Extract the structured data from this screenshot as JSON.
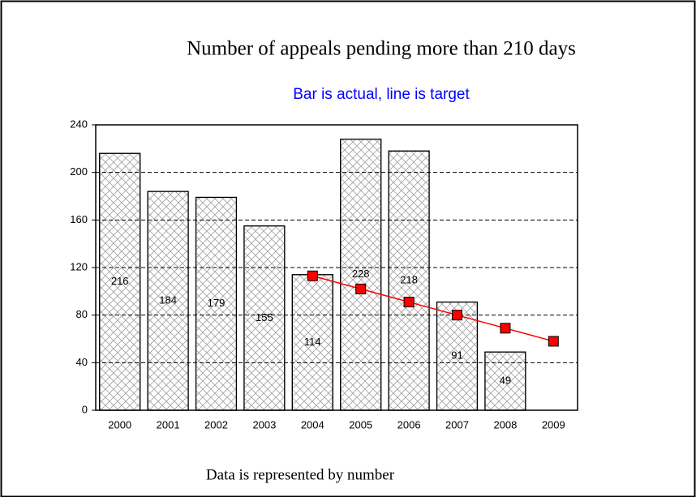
{
  "chart_data": {
    "type": "bar",
    "title": "Number of appeals pending more than 210 days",
    "subtitle": "Bar is actual, line is target",
    "footer": "Data is represented by number",
    "categories": [
      "2000",
      "2001",
      "2002",
      "2003",
      "2004",
      "2005",
      "2006",
      "2007",
      "2008",
      "2009"
    ],
    "series": [
      {
        "type": "bar",
        "color": "#ffffff",
        "pattern": "crosshatch",
        "data_labels": true,
        "values": [
          216,
          184,
          179,
          155,
          114,
          228,
          218,
          91,
          49,
          null
        ]
      },
      {
        "type": "line",
        "color": "#ff0000",
        "values": [
          null,
          null,
          null,
          null,
          113,
          102,
          91,
          80,
          69,
          58
        ]
      }
    ],
    "ylim": [
      0,
      240
    ],
    "yticks": [
      0,
      40,
      80,
      120,
      160,
      200,
      240
    ],
    "grid": true
  }
}
